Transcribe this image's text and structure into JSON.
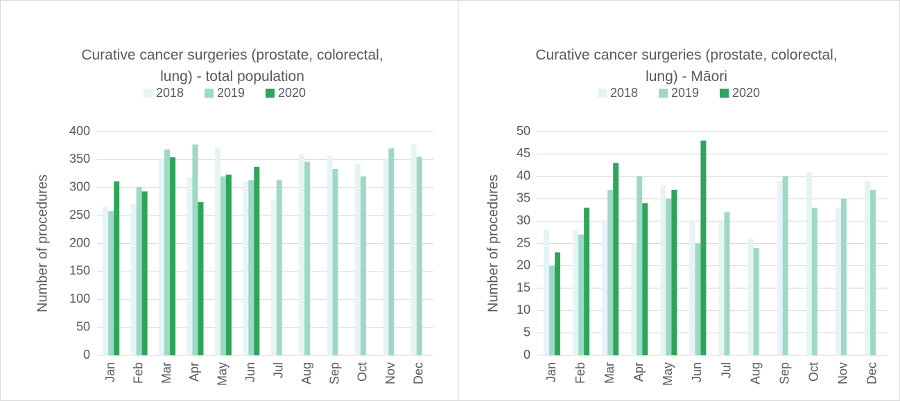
{
  "chart_data": [
    {
      "type": "bar",
      "title": "Curative cancer surgeries (prostate, colorectal, lung) - total population",
      "y_label": "Number of procedures",
      "categories": [
        "Jan",
        "Feb",
        "Mar",
        "Apr",
        "May",
        "Jun",
        "Jul",
        "Aug",
        "Sep",
        "Oct",
        "Nov",
        "Dec"
      ],
      "series": [
        {
          "name": "2018",
          "color": "#e6f4f8",
          "values": [
            265,
            270,
            350,
            318,
            372,
            310,
            278,
            360,
            357,
            342,
            352,
            378
          ]
        },
        {
          "name": "2019",
          "color": "#9dd9c4",
          "values": [
            258,
            301,
            368,
            377,
            320,
            313,
            313,
            346,
            333,
            320,
            370,
            355
          ]
        },
        {
          "name": "2020",
          "color": "#2ea55a",
          "values": [
            311,
            293,
            354,
            274,
            323,
            337,
            null,
            null,
            null,
            null,
            null,
            null
          ]
        }
      ],
      "ylim": [
        0,
        400
      ],
      "yticks": [
        0,
        50,
        100,
        150,
        200,
        250,
        300,
        350,
        400
      ],
      "grid": true,
      "legend": "top"
    },
    {
      "type": "bar",
      "title": "Curative cancer surgeries (prostate, colorectal, lung) - Māori",
      "y_label": "Number of procedures",
      "categories": [
        "Jan",
        "Feb",
        "Mar",
        "Apr",
        "May",
        "Jun",
        "Jul",
        "Aug",
        "Sep",
        "Oct",
        "Nov",
        "Dec"
      ],
      "series": [
        {
          "name": "2018",
          "color": "#e6f4f8",
          "values": [
            28,
            28,
            30,
            25,
            38,
            30,
            30,
            26,
            39,
            41,
            33,
            39
          ]
        },
        {
          "name": "2019",
          "color": "#9dd9c4",
          "values": [
            20,
            27,
            37,
            40,
            35,
            25,
            32,
            24,
            40,
            33,
            35,
            37
          ]
        },
        {
          "name": "2020",
          "color": "#2ea55a",
          "values": [
            23,
            33,
            43,
            34,
            37,
            48,
            null,
            null,
            null,
            null,
            null,
            null
          ]
        }
      ],
      "ylim": [
        0,
        50
      ],
      "yticks": [
        0,
        5,
        10,
        15,
        20,
        25,
        30,
        35,
        40,
        45,
        50
      ],
      "grid": true,
      "legend": "top"
    }
  ]
}
